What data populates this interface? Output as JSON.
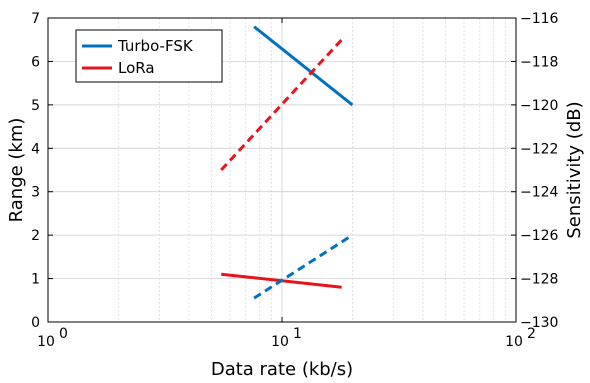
{
  "chart_data": {
    "type": "line",
    "xlabel": "Data rate (kb/s)",
    "ylabel": "Range (km)",
    "ylabel_right": "Sensitivity (dB)",
    "xscale": "log",
    "xlim": [
      1,
      100
    ],
    "ylim": [
      0,
      7
    ],
    "ylim_right": [
      -130,
      -116
    ],
    "x_ticks": [
      1,
      10,
      100
    ],
    "x_tick_labels": [
      [
        "10",
        "0"
      ],
      [
        "10",
        "1"
      ],
      [
        "10",
        "2"
      ]
    ],
    "y_ticks": [
      0,
      1,
      2,
      3,
      4,
      5,
      6,
      7
    ],
    "y_tick_labels": [
      "0",
      "1",
      "2",
      "3",
      "4",
      "5",
      "6",
      "7"
    ],
    "y_right_ticks": [
      -130,
      -128,
      -126,
      -124,
      -122,
      -120,
      -118,
      -116
    ],
    "y_right_tick_labels": [
      "−130",
      "−128",
      "−126",
      "−124",
      "−122",
      "−120",
      "−118",
      "−116"
    ],
    "grid": true,
    "legend": {
      "position": "top-left",
      "entries": [
        "Turbo-FSK",
        "LoRa"
      ]
    },
    "series": [
      {
        "name": "Turbo-FSK",
        "color": "#0072bd",
        "style": "solid",
        "axis": "left",
        "x": [
          7.6,
          20
        ],
        "y": [
          6.8,
          5.0
        ]
      },
      {
        "name": "LoRa",
        "color": "#e8141c",
        "style": "solid",
        "axis": "left",
        "x": [
          5.5,
          18
        ],
        "y": [
          1.1,
          0.8
        ]
      },
      {
        "color": "#0072bd",
        "style": "dashed",
        "axis": "right",
        "x": [
          7.6,
          20
        ],
        "y": [
          -128.9,
          -126.0
        ]
      },
      {
        "color": "#e8141c",
        "style": "dashed",
        "axis": "right",
        "x": [
          5.5,
          18
        ],
        "y": [
          -123.0,
          -117.0
        ]
      }
    ]
  }
}
